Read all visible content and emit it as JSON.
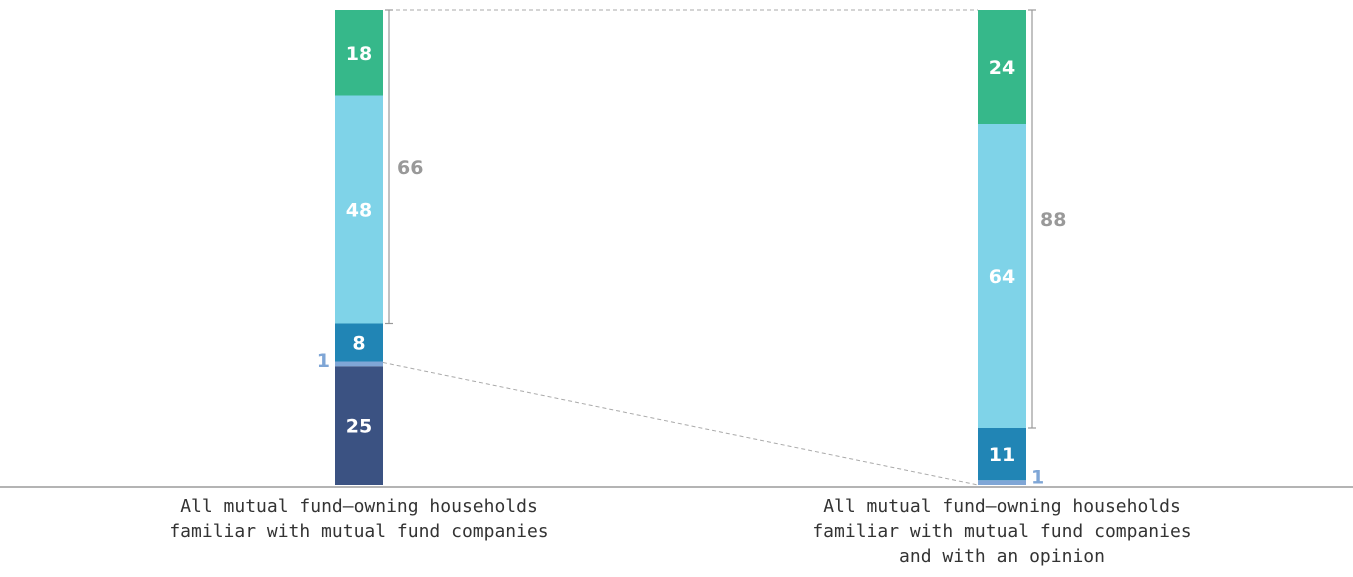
{
  "chart_data": {
    "type": "bar",
    "stacked": true,
    "categories": [
      [
        "All mutual fund–owning households",
        "familiar with mutual fund companies"
      ],
      [
        "All mutual fund–owning households",
        "familiar with mutual fund companies",
        "and with an opinion"
      ]
    ],
    "series": [
      {
        "values": [
          25,
          0
        ],
        "color": "#3b5282"
      },
      {
        "values": [
          1,
          1
        ],
        "color": "#7fa6d6"
      },
      {
        "values": [
          8,
          11
        ],
        "color": "#2185b5"
      },
      {
        "values": [
          48,
          64
        ],
        "color": "#7fd3e8"
      },
      {
        "values": [
          18,
          24
        ],
        "color": "#36b88a"
      }
    ],
    "brackets": [
      66,
      88
    ],
    "ylim": [
      0,
      100
    ],
    "grid": false,
    "legend": "none",
    "bracket_color": "#999999",
    "small_label_color": "#7fa6d6"
  }
}
